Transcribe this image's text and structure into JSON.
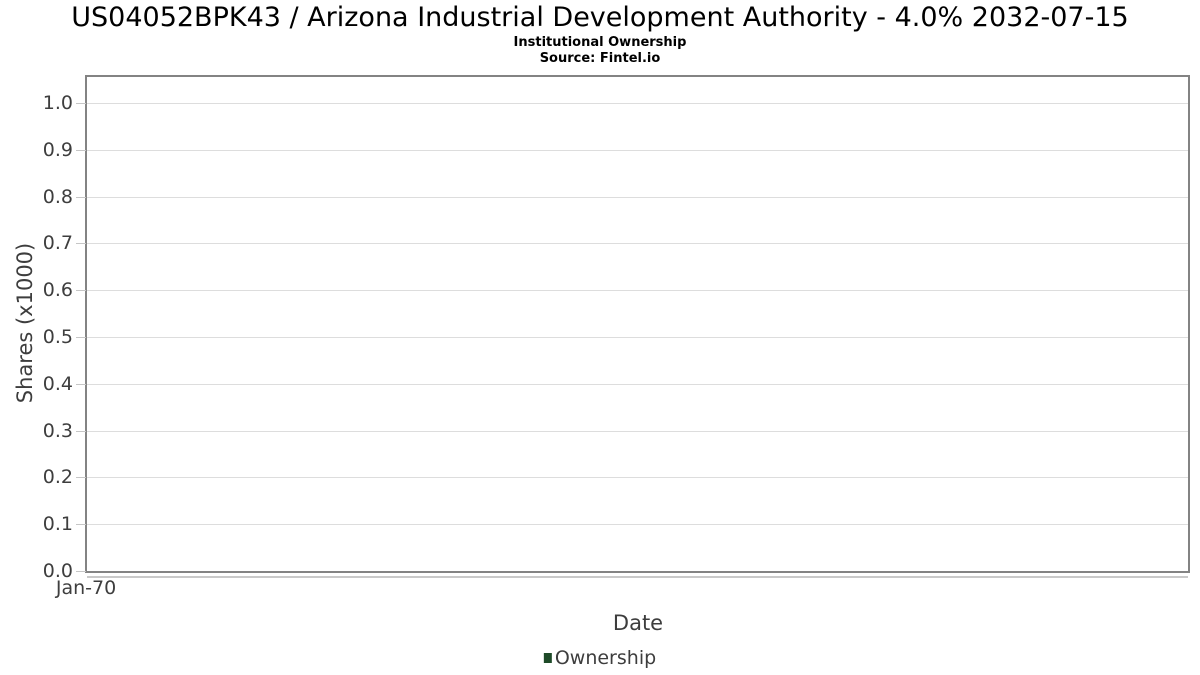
{
  "page": {
    "background_color": "#ffffff"
  },
  "chart_data": {
    "type": "line",
    "title": "US04052BPK43 / Arizona Industrial Development Authority - 4.0% 2032-07-15",
    "subtitle": "Institutional Ownership",
    "source": "Source: Fintel.io",
    "xlabel": "Date",
    "ylabel": "Shares (x1000)",
    "ylim": [
      0.0,
      1.0
    ],
    "yticks": [
      0.0,
      0.1,
      0.2,
      0.3,
      0.4,
      0.5,
      0.6,
      0.7,
      0.8,
      0.9,
      1.0
    ],
    "ytick_labels": [
      "0.0",
      "0.1",
      "0.2",
      "0.3",
      "0.4",
      "0.5",
      "0.6",
      "0.7",
      "0.8",
      "0.9",
      "1.0"
    ],
    "xtick_labels": [
      "Jan-70"
    ],
    "grid": true,
    "legend": {
      "position": "bottom",
      "entries": [
        {
          "label": "Ownership",
          "color": "#1e4a28"
        }
      ]
    },
    "series": [
      {
        "name": "Ownership",
        "color": "#1e4a28",
        "x": [],
        "y": []
      }
    ],
    "colors": {
      "plot_border": "#838383",
      "gridline": "#dddddd",
      "tick_mark": "#c6c6c6",
      "tick_text": "#3e3e3e",
      "axis_title_text": "#3d3d3d",
      "title_text": "#000000"
    }
  }
}
